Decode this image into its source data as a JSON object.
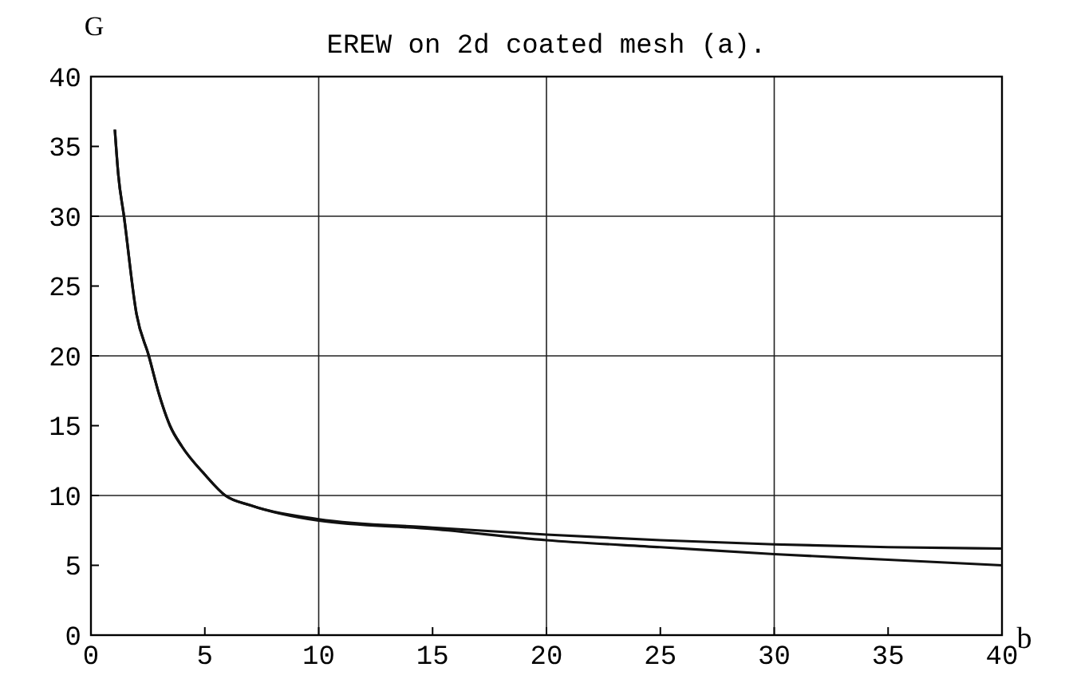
{
  "chart_data": {
    "type": "line",
    "title": "EREW on 2d coated mesh (a).",
    "xlabel": "b",
    "ylabel": "G",
    "xlim": [
      0,
      40
    ],
    "ylim": [
      0,
      40
    ],
    "xticks": [
      0,
      5,
      10,
      15,
      20,
      25,
      30,
      35,
      40
    ],
    "yticks": [
      0,
      5,
      10,
      15,
      20,
      25,
      30,
      35,
      40
    ],
    "grid": true,
    "series": [
      {
        "color": "#111111",
        "x": [
          1.05,
          1.2,
          1.45,
          2,
          2.54,
          3,
          3.47,
          4,
          5,
          5.9,
          7,
          10,
          15,
          20,
          25,
          30,
          35,
          40
        ],
        "values": [
          36.2,
          33,
          30,
          23,
          20,
          17.2,
          15,
          13.5,
          11.5,
          10,
          9.3,
          8.3,
          7.7,
          7.2,
          6.8,
          6.5,
          6.3,
          6.2
        ]
      },
      {
        "color": "#111111",
        "x": [
          1.05,
          1.2,
          1.45,
          2,
          2.54,
          3,
          3.47,
          4,
          5,
          5.9,
          7,
          10,
          15,
          20,
          25,
          30,
          35,
          40
        ],
        "values": [
          36.2,
          33,
          30,
          23,
          20,
          17.2,
          15,
          13.5,
          11.5,
          10,
          9.3,
          8.2,
          7.6,
          6.8,
          6.3,
          5.8,
          5.4,
          5.0
        ]
      }
    ]
  }
}
